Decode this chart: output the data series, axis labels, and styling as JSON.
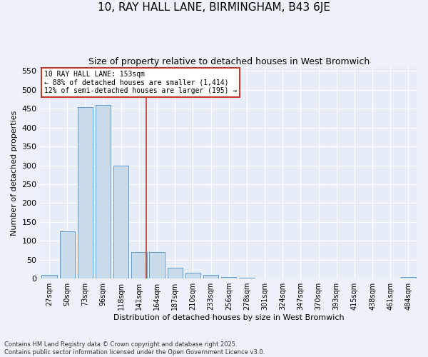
{
  "title": "10, RAY HALL LANE, BIRMINGHAM, B43 6JE",
  "subtitle": "Size of property relative to detached houses in West Bromwich",
  "xlabel": "Distribution of detached houses by size in West Bromwich",
  "ylabel": "Number of detached properties",
  "categories": [
    "27sqm",
    "50sqm",
    "73sqm",
    "96sqm",
    "118sqm",
    "141sqm",
    "164sqm",
    "187sqm",
    "210sqm",
    "233sqm",
    "256sqm",
    "278sqm",
    "301sqm",
    "324sqm",
    "347sqm",
    "370sqm",
    "393sqm",
    "415sqm",
    "438sqm",
    "461sqm",
    "484sqm"
  ],
  "values": [
    10,
    125,
    455,
    460,
    300,
    70,
    70,
    28,
    15,
    10,
    5,
    3,
    1,
    0,
    0,
    0,
    0,
    0,
    0,
    0,
    5
  ],
  "bar_color": "#c9daea",
  "bar_edge_color": "#5b9bd5",
  "vline_index": 5,
  "vline_color": "#c0392b",
  "annotation_line1": "10 RAY HALL LANE: 153sqm",
  "annotation_line2": "← 88% of detached houses are smaller (1,414)",
  "annotation_line3": "12% of semi-detached houses are larger (195) →",
  "annotation_box_edgecolor": "#c0392b",
  "ylim": [
    0,
    560
  ],
  "yticks": [
    0,
    50,
    100,
    150,
    200,
    250,
    300,
    350,
    400,
    450,
    500,
    550
  ],
  "footer": "Contains HM Land Registry data © Crown copyright and database right 2025.\nContains public sector information licensed under the Open Government Licence v3.0.",
  "bg_color": "#edf2f9",
  "plot_bg_color": "#e8eef7",
  "grid_color": "#ffffff",
  "title_fontsize": 11,
  "subtitle_fontsize": 9,
  "ylabel_fontsize": 8,
  "xlabel_fontsize": 8,
  "tick_fontsize": 7,
  "annotation_fontsize": 7,
  "footer_fontsize": 6
}
